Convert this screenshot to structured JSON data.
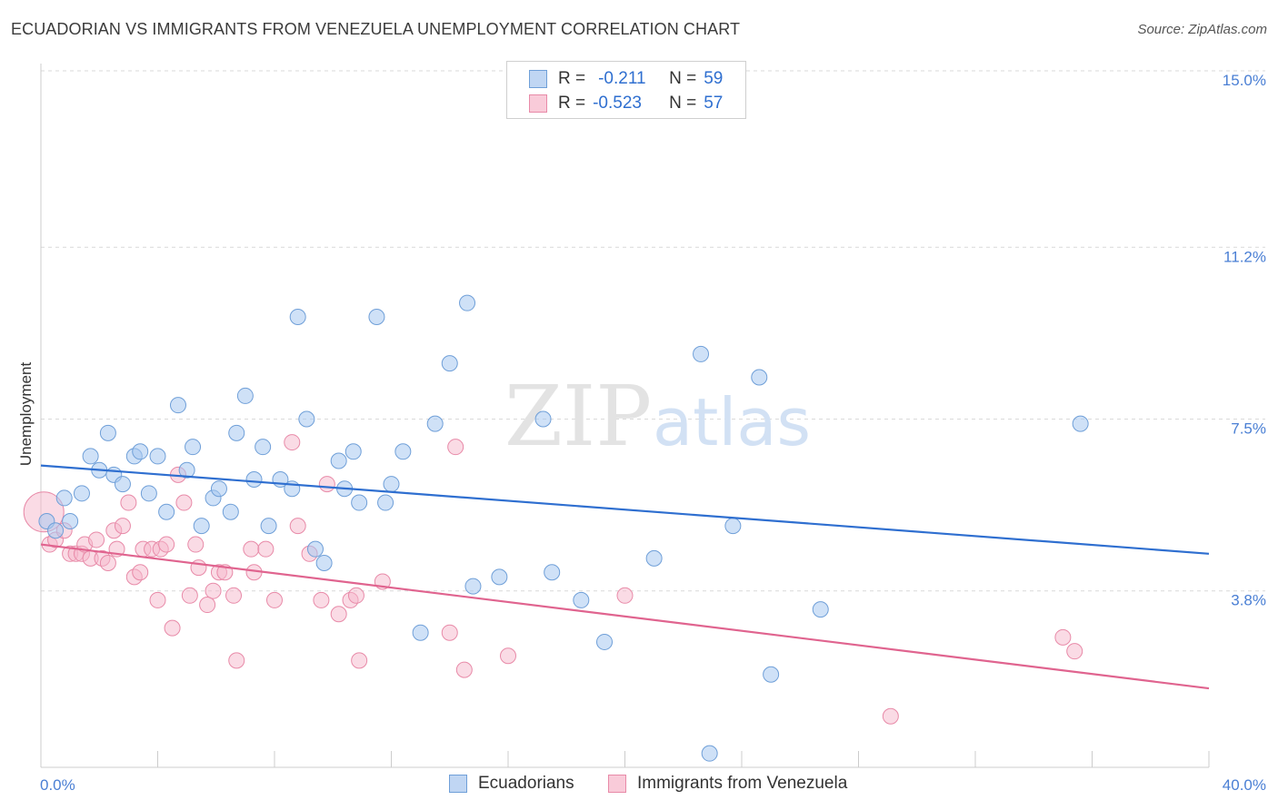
{
  "title": "ECUADORIAN VS IMMIGRANTS FROM VENEZUELA UNEMPLOYMENT CORRELATION CHART",
  "source": "Source: ZipAtlas.com",
  "watermark": {
    "zip": "ZIP",
    "atlas": "atlas"
  },
  "legend": {
    "series1": {
      "r_label": "R =",
      "r_value": "-0.211",
      "n_label": "N =",
      "n_value": "59"
    },
    "series2": {
      "r_label": "R =",
      "r_value": "-0.523",
      "n_label": "N =",
      "n_value": "57"
    }
  },
  "bottom_legend": {
    "series1": "Ecuadorians",
    "series2": "Immigrants from Venezuela"
  },
  "colors": {
    "blue_fill": "#a8c8f0",
    "blue_stroke": "#6f9fd8",
    "blue_line": "#2f6fd0",
    "pink_fill": "#f6b8cb",
    "pink_stroke": "#e88aa8",
    "pink_line": "#e0648f",
    "tick_text": "#4a7fd4",
    "grid": "#d9d9d9"
  },
  "chart_data": {
    "type": "scatter",
    "title": "ECUADORIAN VS IMMIGRANTS FROM VENEZUELA UNEMPLOYMENT CORRELATION CHART",
    "xlabel": "",
    "ylabel": "Unemployment",
    "xlim": [
      0,
      40
    ],
    "ylim": [
      0,
      15
    ],
    "x_tick_labels": [
      "0.0%",
      "40.0%"
    ],
    "y_ticks": [
      3.8,
      7.5,
      11.2,
      15.0
    ],
    "y_tick_labels": [
      "3.8%",
      "7.5%",
      "11.2%",
      "15.0%"
    ],
    "grid": true,
    "legend_position": "top-center",
    "series": [
      {
        "name": "Ecuadorians",
        "r": -0.211,
        "n": 59,
        "trend": {
          "x": [
            0,
            40
          ],
          "y": [
            6.5,
            4.6
          ]
        },
        "points": [
          [
            0.2,
            5.3
          ],
          [
            0.5,
            5.1
          ],
          [
            0.8,
            5.8
          ],
          [
            1.0,
            5.3
          ],
          [
            1.4,
            5.9
          ],
          [
            1.7,
            6.7
          ],
          [
            2.0,
            6.4
          ],
          [
            2.3,
            7.2
          ],
          [
            2.5,
            6.3
          ],
          [
            2.8,
            6.1
          ],
          [
            3.2,
            6.7
          ],
          [
            3.4,
            6.8
          ],
          [
            3.7,
            5.9
          ],
          [
            4.0,
            6.7
          ],
          [
            4.3,
            5.5
          ],
          [
            4.7,
            7.8
          ],
          [
            5.0,
            6.4
          ],
          [
            5.2,
            6.9
          ],
          [
            5.5,
            5.2
          ],
          [
            5.9,
            5.8
          ],
          [
            6.1,
            6.0
          ],
          [
            6.5,
            5.5
          ],
          [
            6.7,
            7.2
          ],
          [
            7.0,
            8.0
          ],
          [
            7.3,
            6.2
          ],
          [
            7.6,
            6.9
          ],
          [
            7.8,
            5.2
          ],
          [
            8.2,
            6.2
          ],
          [
            8.6,
            6.0
          ],
          [
            8.8,
            9.7
          ],
          [
            9.1,
            7.5
          ],
          [
            9.4,
            4.7
          ],
          [
            9.7,
            4.4
          ],
          [
            10.2,
            6.6
          ],
          [
            10.4,
            6.0
          ],
          [
            10.7,
            6.8
          ],
          [
            10.9,
            5.7
          ],
          [
            11.5,
            9.7
          ],
          [
            11.8,
            5.7
          ],
          [
            12.0,
            6.1
          ],
          [
            12.4,
            6.8
          ],
          [
            13.0,
            2.9
          ],
          [
            13.5,
            7.4
          ],
          [
            14.0,
            8.7
          ],
          [
            14.6,
            10.0
          ],
          [
            14.8,
            3.9
          ],
          [
            15.7,
            4.1
          ],
          [
            17.2,
            7.5
          ],
          [
            17.5,
            4.2
          ],
          [
            18.5,
            3.6
          ],
          [
            19.3,
            2.7
          ],
          [
            21.0,
            4.5
          ],
          [
            22.6,
            8.9
          ],
          [
            22.9,
            0.3
          ],
          [
            23.7,
            5.2
          ],
          [
            24.6,
            8.4
          ],
          [
            25.0,
            2.0
          ],
          [
            26.7,
            3.4
          ],
          [
            35.6,
            7.4
          ]
        ]
      },
      {
        "name": "Immigrants from Venezuela",
        "r": -0.523,
        "n": 57,
        "trend": {
          "x": [
            0,
            40
          ],
          "y": [
            4.8,
            1.7
          ]
        },
        "points": [
          [
            0.3,
            4.8
          ],
          [
            0.5,
            4.9
          ],
          [
            0.8,
            5.1
          ],
          [
            1.0,
            4.6
          ],
          [
            1.2,
            4.6
          ],
          [
            1.4,
            4.6
          ],
          [
            1.5,
            4.8
          ],
          [
            1.7,
            4.5
          ],
          [
            1.9,
            4.9
          ],
          [
            2.1,
            4.5
          ],
          [
            2.3,
            4.4
          ],
          [
            2.5,
            5.1
          ],
          [
            2.6,
            4.7
          ],
          [
            2.8,
            5.2
          ],
          [
            3.0,
            5.7
          ],
          [
            3.2,
            4.1
          ],
          [
            3.4,
            4.2
          ],
          [
            3.5,
            4.7
          ],
          [
            3.8,
            4.7
          ],
          [
            4.0,
            3.6
          ],
          [
            4.1,
            4.7
          ],
          [
            4.3,
            4.8
          ],
          [
            4.5,
            3.0
          ],
          [
            4.7,
            6.3
          ],
          [
            4.9,
            5.7
          ],
          [
            5.1,
            3.7
          ],
          [
            5.3,
            4.8
          ],
          [
            5.4,
            4.3
          ],
          [
            5.7,
            3.5
          ],
          [
            5.9,
            3.8
          ],
          [
            6.1,
            4.2
          ],
          [
            6.3,
            4.2
          ],
          [
            6.6,
            3.7
          ],
          [
            6.7,
            2.3
          ],
          [
            7.2,
            4.7
          ],
          [
            7.3,
            4.2
          ],
          [
            7.7,
            4.7
          ],
          [
            8.0,
            3.6
          ],
          [
            8.6,
            7.0
          ],
          [
            8.8,
            5.2
          ],
          [
            9.2,
            4.6
          ],
          [
            9.6,
            3.6
          ],
          [
            9.8,
            6.1
          ],
          [
            10.2,
            3.3
          ],
          [
            10.6,
            3.6
          ],
          [
            10.8,
            3.7
          ],
          [
            10.9,
            2.3
          ],
          [
            11.7,
            4.0
          ],
          [
            14.0,
            2.9
          ],
          [
            14.2,
            6.9
          ],
          [
            14.5,
            2.1
          ],
          [
            16.0,
            2.4
          ],
          [
            20.0,
            3.7
          ],
          [
            29.1,
            1.1
          ],
          [
            35.0,
            2.8
          ],
          [
            35.4,
            2.5
          ],
          [
            0.1,
            5.5
          ]
        ]
      }
    ]
  }
}
